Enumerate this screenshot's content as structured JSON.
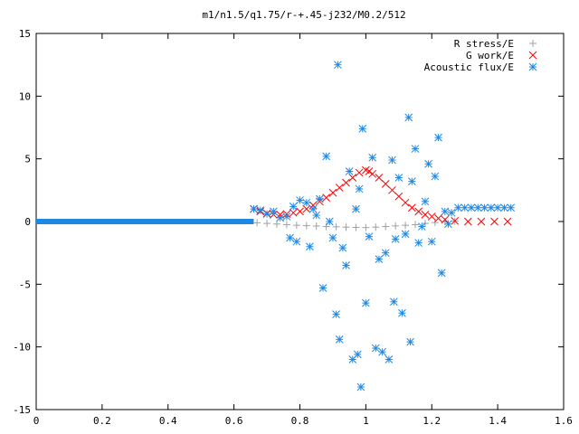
{
  "chart_data": {
    "type": "scatter",
    "title": "m1/n1.5/q1.75/r-+.45-j232/M0.2/512",
    "xlabel": "",
    "ylabel": "",
    "xlim": [
      0,
      1.6
    ],
    "ylim": [
      -15,
      15
    ],
    "x_ticks": [
      0,
      0.2,
      0.4,
      0.6,
      0.8,
      1,
      1.2,
      1.4,
      1.6
    ],
    "x_tick_labels": [
      "0",
      "0.2",
      "0.4",
      "0.6",
      "0.8",
      "1",
      "1.2",
      "1.4",
      "1.6"
    ],
    "y_ticks": [
      -15,
      -10,
      -5,
      0,
      5,
      10,
      15
    ],
    "y_tick_labels": [
      "-15",
      "-10",
      "-5",
      "0",
      "5",
      "10",
      "15"
    ],
    "grid": false,
    "legend_position": "top-right",
    "series": [
      {
        "name": "R stress/E",
        "marker": "+",
        "color": "#a0a0a0",
        "points": [
          [
            0.67,
            -0.1
          ],
          [
            0.7,
            -0.15
          ],
          [
            0.73,
            -0.2
          ],
          [
            0.76,
            -0.25
          ],
          [
            0.79,
            -0.3
          ],
          [
            0.82,
            -0.33
          ],
          [
            0.85,
            -0.36
          ],
          [
            0.88,
            -0.4
          ],
          [
            0.91,
            -0.42
          ],
          [
            0.94,
            -0.45
          ],
          [
            0.97,
            -0.47
          ],
          [
            1.0,
            -0.48
          ],
          [
            1.03,
            -0.45
          ],
          [
            1.06,
            -0.4
          ],
          [
            1.09,
            -0.35
          ],
          [
            1.12,
            -0.3
          ],
          [
            1.15,
            -0.25
          ],
          [
            1.18,
            -0.15
          ],
          [
            1.21,
            -0.08
          ],
          [
            1.24,
            0.0
          ],
          [
            1.27,
            0.02
          ]
        ]
      },
      {
        "name": "G work/E",
        "marker": "x",
        "color": "#ff0000",
        "points": [
          [
            0.66,
            1.0
          ],
          [
            0.68,
            0.8
          ],
          [
            0.7,
            0.65
          ],
          [
            0.72,
            0.55
          ],
          [
            0.74,
            0.55
          ],
          [
            0.76,
            0.6
          ],
          [
            0.78,
            0.7
          ],
          [
            0.8,
            0.8
          ],
          [
            0.82,
            1.0
          ],
          [
            0.84,
            1.3
          ],
          [
            0.86,
            1.6
          ],
          [
            0.88,
            1.9
          ],
          [
            0.9,
            2.3
          ],
          [
            0.92,
            2.7
          ],
          [
            0.94,
            3.1
          ],
          [
            0.96,
            3.5
          ],
          [
            0.98,
            3.9
          ],
          [
            1.0,
            4.1
          ],
          [
            1.01,
            4.0
          ],
          [
            1.02,
            3.8
          ],
          [
            1.04,
            3.5
          ],
          [
            1.06,
            3.0
          ],
          [
            1.08,
            2.5
          ],
          [
            1.1,
            2.0
          ],
          [
            1.12,
            1.5
          ],
          [
            1.14,
            1.1
          ],
          [
            1.16,
            0.8
          ],
          [
            1.18,
            0.55
          ],
          [
            1.2,
            0.4
          ],
          [
            1.22,
            0.25
          ],
          [
            1.24,
            0.15
          ],
          [
            1.27,
            0.05
          ],
          [
            1.31,
            0.0
          ],
          [
            1.35,
            0.0
          ],
          [
            1.39,
            0.0
          ],
          [
            1.43,
            0.0
          ]
        ]
      },
      {
        "name": "Acoustic flux/E",
        "marker": "*",
        "color": "#1e88e5",
        "points": [
          [
            0.66,
            1.0
          ],
          [
            0.68,
            0.9
          ],
          [
            0.7,
            0.6
          ],
          [
            0.72,
            0.8
          ],
          [
            0.74,
            0.3
          ],
          [
            0.76,
            0.4
          ],
          [
            0.78,
            1.2
          ],
          [
            0.8,
            1.7
          ],
          [
            0.82,
            1.5
          ],
          [
            0.84,
            1.0
          ],
          [
            0.77,
            -1.3
          ],
          [
            0.79,
            -1.6
          ],
          [
            0.83,
            -2.0
          ],
          [
            0.85,
            0.5
          ],
          [
            0.86,
            1.8
          ],
          [
            0.87,
            -5.3
          ],
          [
            0.88,
            5.2
          ],
          [
            0.89,
            0.0
          ],
          [
            0.9,
            -1.3
          ],
          [
            0.91,
            -7.4
          ],
          [
            0.915,
            12.5
          ],
          [
            0.92,
            -9.4
          ],
          [
            0.93,
            -2.1
          ],
          [
            0.94,
            -3.5
          ],
          [
            0.95,
            4.0
          ],
          [
            0.96,
            -11.0
          ],
          [
            0.97,
            1.0
          ],
          [
            0.975,
            -10.6
          ],
          [
            0.98,
            2.6
          ],
          [
            0.985,
            -13.2
          ],
          [
            0.99,
            7.4
          ],
          [
            1.0,
            -6.5
          ],
          [
            1.01,
            -1.2
          ],
          [
            1.02,
            5.1
          ],
          [
            1.03,
            -10.1
          ],
          [
            1.04,
            -3.0
          ],
          [
            1.05,
            -10.4
          ],
          [
            1.06,
            -2.5
          ],
          [
            1.07,
            -11.0
          ],
          [
            1.08,
            4.9
          ],
          [
            1.085,
            -6.4
          ],
          [
            1.09,
            -1.4
          ],
          [
            1.1,
            3.5
          ],
          [
            1.11,
            -7.3
          ],
          [
            1.12,
            -1.0
          ],
          [
            1.13,
            8.3
          ],
          [
            1.135,
            -9.6
          ],
          [
            1.14,
            3.2
          ],
          [
            1.15,
            5.8
          ],
          [
            1.16,
            -1.7
          ],
          [
            1.17,
            -0.4
          ],
          [
            1.18,
            1.6
          ],
          [
            1.19,
            4.6
          ],
          [
            1.2,
            -1.6
          ],
          [
            1.21,
            3.6
          ],
          [
            1.22,
            6.7
          ],
          [
            1.23,
            -4.1
          ],
          [
            1.24,
            0.8
          ],
          [
            1.25,
            -0.2
          ],
          [
            1.26,
            0.7
          ],
          [
            1.28,
            1.1
          ],
          [
            1.3,
            1.1
          ],
          [
            1.32,
            1.1
          ],
          [
            1.34,
            1.1
          ],
          [
            1.36,
            1.1
          ],
          [
            1.38,
            1.1
          ],
          [
            1.4,
            1.1
          ],
          [
            1.42,
            1.1
          ],
          [
            1.44,
            1.1
          ]
        ]
      }
    ]
  }
}
